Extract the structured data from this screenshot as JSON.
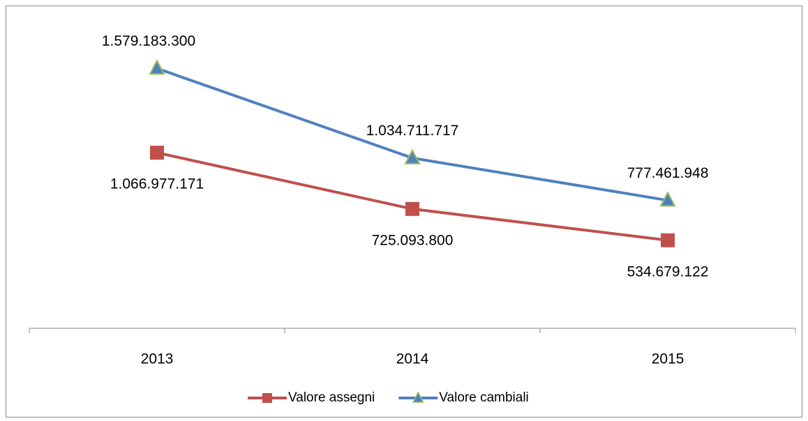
{
  "chart_data": {
    "type": "line",
    "categories": [
      "2013",
      "2014",
      "2015"
    ],
    "ylim": [
      0,
      1800000000
    ],
    "series": [
      {
        "name": "Valore assegni",
        "color": "#c0504d",
        "marker": "square",
        "values": [
          1066977171,
          725093800,
          534679122
        ],
        "value_labels": [
          "1.066.977.171",
          "725.093.800",
          "534.679.122"
        ]
      },
      {
        "name": "Valore cambiali",
        "color": "#4f81bd",
        "marker": "triangle",
        "values": [
          1579183300,
          1034711717,
          777461948
        ],
        "value_labels": [
          "1.579.183.300",
          "1.034.711.717",
          "777.461.948"
        ]
      }
    ]
  }
}
